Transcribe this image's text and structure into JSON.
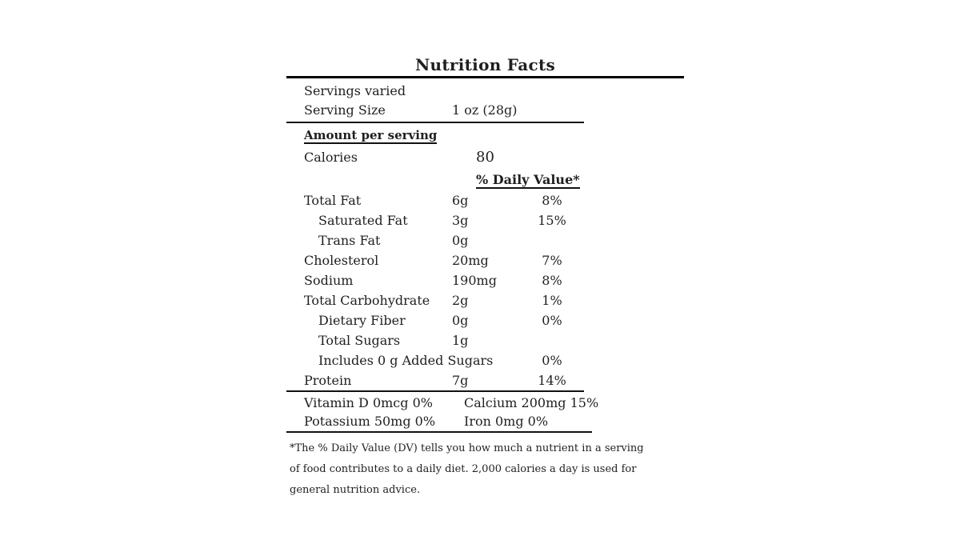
{
  "title": "Nutrition Facts",
  "serving": {
    "servings_line": "Servings varied",
    "size_label": "Serving Size",
    "size_value": "1 oz (28g)"
  },
  "amount_per_serving_label": "Amount per serving",
  "calories": {
    "label": "Calories",
    "value": "80"
  },
  "daily_value_header": "% Daily Value*",
  "nutrients": [
    {
      "label": "Total Fat",
      "amount": "6g",
      "dv": "8%"
    },
    {
      "label": "Saturated Fat",
      "amount": "3g",
      "dv": "15%"
    },
    {
      "label": "Trans Fat",
      "amount": "0g",
      "dv": ""
    },
    {
      "label": "Cholesterol",
      "amount": "20mg",
      "dv": "7%"
    },
    {
      "label": "Sodium",
      "amount": "190mg",
      "dv": "8%"
    },
    {
      "label": "Total Carbohydrate",
      "amount": "2g",
      "dv": "1%"
    },
    {
      "label": "Dietary Fiber",
      "amount": "0g",
      "dv": "0%"
    },
    {
      "label": "Total Sugars",
      "amount": "1g",
      "dv": ""
    },
    {
      "label": "Includes 0 g Added Sugars",
      "amount": "",
      "dv": "0%"
    },
    {
      "label": "Protein",
      "amount": "7g",
      "dv": "14%"
    }
  ],
  "micronutrients": [
    [
      "Vitamin D 0mcg 0%",
      "Calcium 200mg 15%"
    ],
    [
      "Potassium 50mg 0%",
      "Iron 0mg 0%"
    ]
  ],
  "footnote_lines": [
    "*The % Daily Value (DV) tells you how much a nutrient in a serving",
    "of food contributes to a daily diet. 2,000 calories a day is used for",
    "general nutrition advice."
  ],
  "colors": {
    "text": "#1f1f1f",
    "rule": "#000000",
    "background": "#ffffff"
  }
}
